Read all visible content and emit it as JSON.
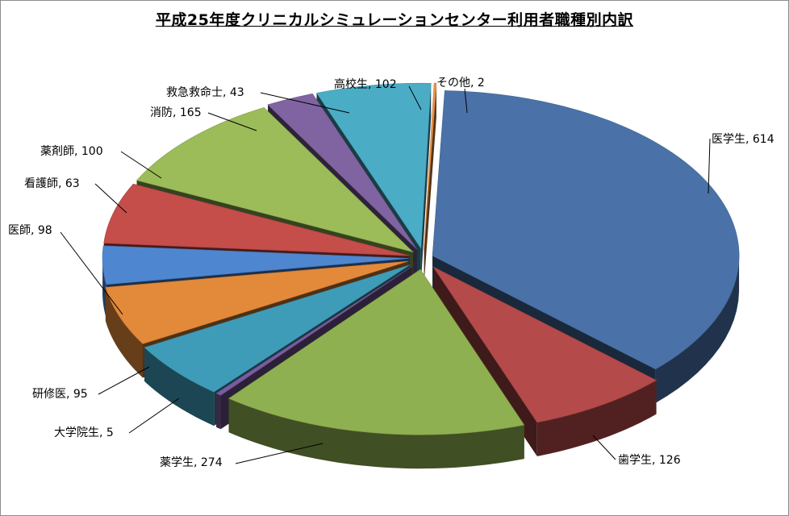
{
  "chart_data": {
    "type": "pie",
    "title": "平成25年度クリニカルシミュレーションセンター利用者職種別内訳",
    "style": "3d-exploded",
    "slices": [
      {
        "label": "医学生",
        "value": 614,
        "color": "#4a72a8"
      },
      {
        "label": "歯学生",
        "value": 126,
        "color": "#b54a4a"
      },
      {
        "label": "薬学生",
        "value": 274,
        "color": "#8fb050"
      },
      {
        "label": "大学院生",
        "value": 5,
        "color": "#7a5ca0"
      },
      {
        "label": "研修医",
        "value": 95,
        "color": "#3f9cb8"
      },
      {
        "label": "医師",
        "value": 98,
        "color": "#e3893a"
      },
      {
        "label": "看護師",
        "value": 63,
        "color": "#4f86d0"
      },
      {
        "label": "薬剤師",
        "value": 100,
        "color": "#c54d4a"
      },
      {
        "label": "消防",
        "value": 165,
        "color": "#9bbc59"
      },
      {
        "label": "救急救命士",
        "value": 43,
        "color": "#8064a2"
      },
      {
        "label": "高校生",
        "value": 102,
        "color": "#4bacc6"
      },
      {
        "label": "その他",
        "value": 2,
        "color": "#f09444"
      }
    ]
  }
}
